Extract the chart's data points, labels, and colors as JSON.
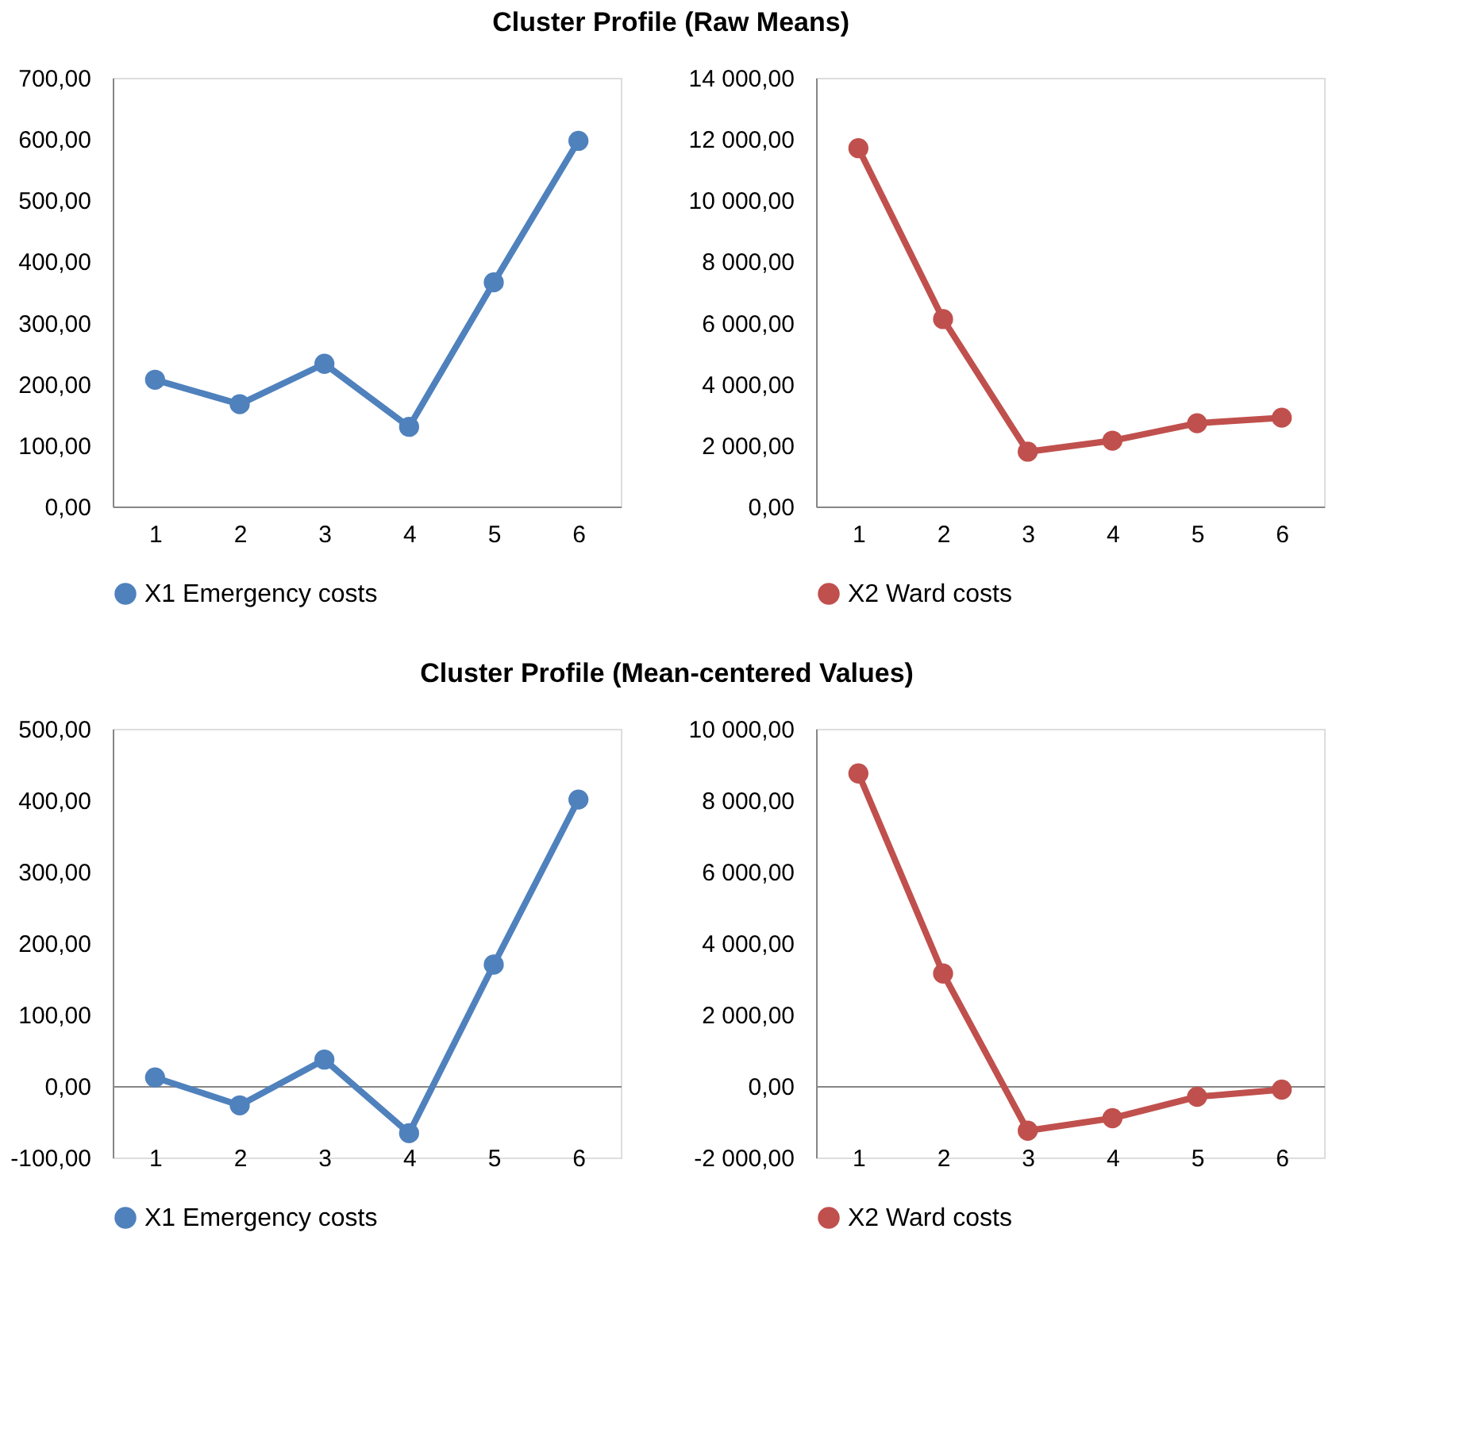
{
  "chart_data": [
    {
      "type": "line",
      "title": "Cluster Profile (Raw Means)",
      "categories": [
        "1",
        "2",
        "3",
        "4",
        "5",
        "6"
      ],
      "series": [
        {
          "name": "X1 Emergency costs",
          "color": "#4f81bd",
          "values": [
            207,
            167,
            233,
            130,
            366,
            597
          ]
        }
      ],
      "ylim": [
        0,
        700
      ],
      "yticks": [
        {
          "value": 0,
          "label": "0,00"
        },
        {
          "value": 100,
          "label": "100,00"
        },
        {
          "value": 200,
          "label": "200,00"
        },
        {
          "value": 300,
          "label": "300,00"
        },
        {
          "value": 400,
          "label": "400,00"
        },
        {
          "value": 500,
          "label": "500,00"
        },
        {
          "value": 600,
          "label": "600,00"
        },
        {
          "value": 700,
          "label": "700,00"
        }
      ],
      "marker": "circle",
      "line_style": "solid",
      "legend": "bottom"
    },
    {
      "type": "line",
      "categories": [
        "1",
        "2",
        "3",
        "4",
        "5",
        "6"
      ],
      "series": [
        {
          "name": "X2 Ward costs",
          "color": "#c0504d",
          "values": [
            11700,
            6120,
            1790,
            2150,
            2720,
            2900
          ]
        }
      ],
      "ylim": [
        0,
        14000
      ],
      "yticks": [
        {
          "value": 0,
          "label": "0,00"
        },
        {
          "value": 2000,
          "label": "2 000,00"
        },
        {
          "value": 4000,
          "label": "4 000,00"
        },
        {
          "value": 6000,
          "label": "6 000,00"
        },
        {
          "value": 8000,
          "label": "8 000,00"
        },
        {
          "value": 10000,
          "label": "10 000,00"
        },
        {
          "value": 12000,
          "label": "12 000,00"
        },
        {
          "value": 14000,
          "label": "14 000,00"
        }
      ],
      "marker": "circle",
      "line_style": "solid",
      "legend": "bottom"
    },
    {
      "type": "line",
      "title": "Cluster Profile (Mean-centered Values)",
      "categories": [
        "1",
        "2",
        "3",
        "4",
        "5",
        "6"
      ],
      "series": [
        {
          "name": "X1 Emergency costs",
          "color": "#4f81bd",
          "values": [
            12,
            -27,
            37,
            -66,
            170,
            401
          ]
        }
      ],
      "ylim": [
        -100,
        500
      ],
      "yticks": [
        {
          "value": -100,
          "label": "-100,00"
        },
        {
          "value": 0,
          "label": "0,00"
        },
        {
          "value": 100,
          "label": "100,00"
        },
        {
          "value": 200,
          "label": "200,00"
        },
        {
          "value": 300,
          "label": "300,00"
        },
        {
          "value": 400,
          "label": "400,00"
        },
        {
          "value": 500,
          "label": "500,00"
        }
      ],
      "marker": "circle",
      "line_style": "solid",
      "legend": "bottom"
    },
    {
      "type": "line",
      "categories": [
        "1",
        "2",
        "3",
        "4",
        "5",
        "6"
      ],
      "series": [
        {
          "name": "X2 Ward costs",
          "color": "#c0504d",
          "values": [
            8750,
            3150,
            -1250,
            -900,
            -300,
            -100
          ]
        }
      ],
      "ylim": [
        -2000,
        10000
      ],
      "yticks": [
        {
          "value": -2000,
          "label": "-2 000,00"
        },
        {
          "value": 0,
          "label": "0,00"
        },
        {
          "value": 2000,
          "label": "2 000,00"
        },
        {
          "value": 4000,
          "label": "4 000,00"
        },
        {
          "value": 6000,
          "label": "6 000,00"
        },
        {
          "value": 8000,
          "label": "8 000,00"
        },
        {
          "value": 10000,
          "label": "10 000,00"
        }
      ],
      "marker": "circle",
      "line_style": "solid",
      "legend": "bottom"
    }
  ]
}
